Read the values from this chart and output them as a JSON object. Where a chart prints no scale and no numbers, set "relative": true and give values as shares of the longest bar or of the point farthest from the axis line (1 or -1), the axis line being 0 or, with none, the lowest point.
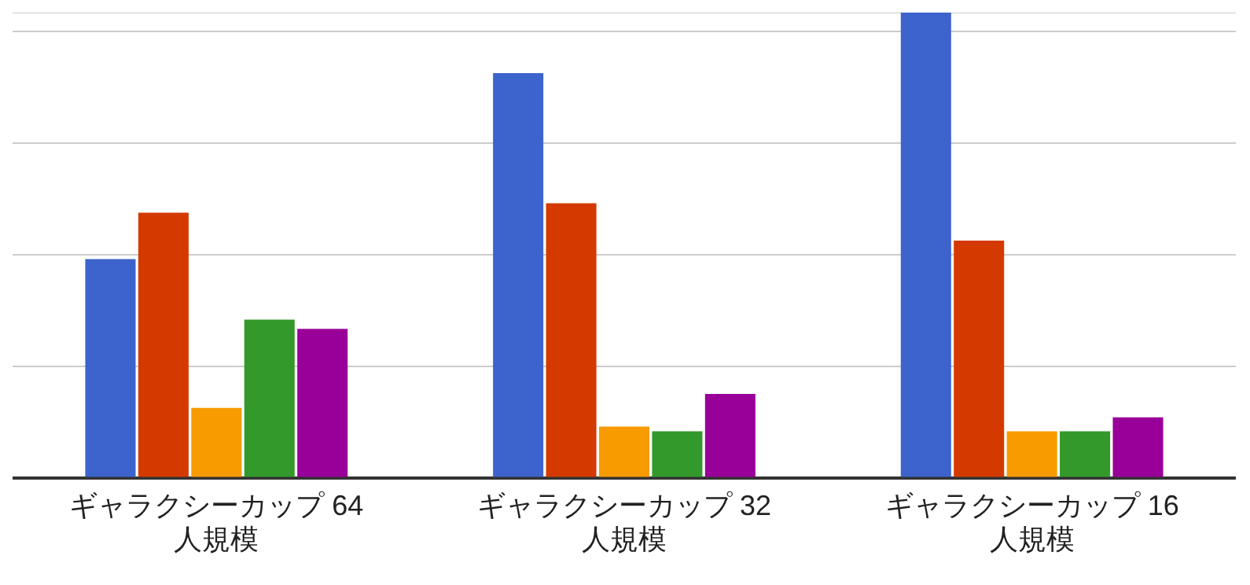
{
  "chart_data": {
    "type": "bar",
    "relative": true,
    "grid": "y",
    "legend": false,
    "categories": [
      "ギャラクシーカップ 64人規模",
      "ギャラクシーカップ 32人規模",
      "ギャラクシーカップ 16人規模"
    ],
    "series": [
      {
        "color": "#3c64cc",
        "values": [
          0.47,
          0.87,
          1
        ]
      },
      {
        "color": "#d43a00",
        "values": [
          0.57,
          0.59,
          0.51
        ]
      },
      {
        "color": "#f79b00",
        "values": [
          0.15,
          0.11,
          0.1
        ]
      },
      {
        "color": "#33992a",
        "values": [
          0.34,
          0.1,
          0.1
        ]
      },
      {
        "color": "#990099",
        "values": [
          0.32,
          0.18,
          0.13
        ]
      }
    ]
  }
}
